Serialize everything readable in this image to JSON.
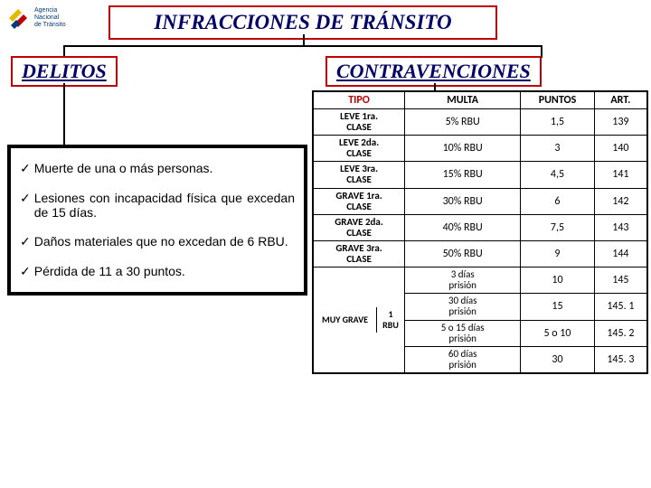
{
  "logo": {
    "line1": "Agencia",
    "line2": "Nacional",
    "line3": "de Tránsito"
  },
  "mainTitle": "INFRACCIONES DE TRÁNSITO",
  "delitos": {
    "title": "DELITOS",
    "items": [
      "Muerte de una o más personas.",
      "Lesiones con incapacidad física que excedan de 15 días.",
      "Daños materiales que no excedan de 6 RBU.",
      "Pérdida de  11 a 30 puntos."
    ]
  },
  "contrav": {
    "title": "CONTRAVENCIONES",
    "headers": {
      "tipo": "TIPO",
      "multa": "MULTA",
      "puntos": "PUNTOS",
      "art": "ART."
    },
    "rows": [
      {
        "tipo_l1": "LEVE 1ra.",
        "tipo_l2": "CLASE",
        "multa": "5% RBU",
        "puntos": "1,5",
        "art": "139"
      },
      {
        "tipo_l1": "LEVE 2da.",
        "tipo_l2": "CLASE",
        "multa": "10% RBU",
        "puntos": "3",
        "art": "140"
      },
      {
        "tipo_l1": "LEVE 3ra.",
        "tipo_l2": "CLASE",
        "multa": "15% RBU",
        "puntos": "4,5",
        "art": "141"
      },
      {
        "tipo_l1": "GRAVE 1ra.",
        "tipo_l2": "CLASE",
        "multa": "30% RBU",
        "puntos": "6",
        "art": "142"
      },
      {
        "tipo_l1": "GRAVE 2da.",
        "tipo_l2": "CLASE",
        "multa": "40% RBU",
        "puntos": "7,5",
        "art": "143"
      },
      {
        "tipo_l1": "GRAVE 3ra.",
        "tipo_l2": "CLASE",
        "multa": "50% RBU",
        "puntos": "9",
        "art": "144"
      }
    ],
    "muyGrave": {
      "label": "MUY GRAVE",
      "rbu": "1 RBU",
      "sub": [
        {
          "multa": "3 días prisión",
          "puntos": "10",
          "art": "145"
        },
        {
          "multa": "30 días prisión",
          "puntos": "15",
          "art": "145. 1"
        },
        {
          "multa": "5 o 15 días prisión",
          "puntos": "5 o 10",
          "art": "145. 2"
        },
        {
          "multa": "60 días prisión",
          "puntos": "30",
          "art": "145. 3"
        }
      ]
    }
  },
  "colors": {
    "titleBorder": "#c00000",
    "titleText": "#000066",
    "headerTipo": "#c00000",
    "black": "#000000"
  }
}
